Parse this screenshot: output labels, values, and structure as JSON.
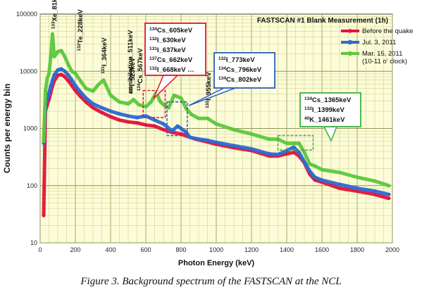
{
  "chart_data": {
    "type": "line",
    "title": "FASTSCAN #1 Blank Measurement (1h)",
    "xlabel": "Photon Energy (keV)",
    "ylabel": "Counts per energy bin",
    "xlim": [
      0,
      2000
    ],
    "ylim": [
      10,
      100000
    ],
    "yscale": "log",
    "grid": true,
    "legend_position": "top-right",
    "x_ticks": [
      "0",
      "200",
      "400",
      "600",
      "800",
      "1000",
      "1200",
      "1400",
      "1600",
      "1800",
      "2000"
    ],
    "y_ticks": [
      "10",
      "100",
      "1000",
      "10000",
      "100000"
    ],
    "series": [
      {
        "name": "Before the quake",
        "color": "#e0143c",
        "marker": "diamond",
        "x": [
          20,
          30,
          40,
          50,
          60,
          70,
          80,
          100,
          120,
          140,
          160,
          180,
          200,
          230,
          260,
          300,
          350,
          400,
          450,
          500,
          550,
          600,
          650,
          700,
          750,
          800,
          850,
          900,
          950,
          1000,
          1100,
          1200,
          1300,
          1350,
          1400,
          1440,
          1470,
          1500,
          1530,
          1560,
          1600,
          1700,
          1800,
          1900,
          1980
        ],
        "y": [
          30,
          2000,
          2600,
          3200,
          4200,
          5500,
          6800,
          8500,
          8800,
          8000,
          6800,
          5600,
          4600,
          3600,
          2900,
          2300,
          1900,
          1600,
          1400,
          1300,
          1250,
          1150,
          1100,
          950,
          850,
          800,
          700,
          630,
          580,
          530,
          460,
          410,
          330,
          330,
          360,
          380,
          330,
          250,
          160,
          125,
          115,
          90,
          80,
          70,
          60
        ]
      },
      {
        "name": "Jul. 3, 2011",
        "color": "#2a6bd4",
        "marker": "circle",
        "x": [
          20,
          30,
          40,
          50,
          60,
          70,
          80,
          100,
          120,
          140,
          160,
          180,
          200,
          230,
          260,
          300,
          350,
          400,
          450,
          500,
          550,
          600,
          650,
          700,
          750,
          780,
          800,
          830,
          850,
          900,
          950,
          1000,
          1100,
          1200,
          1300,
          1350,
          1400,
          1440,
          1470,
          1500,
          1530,
          1560,
          1600,
          1700,
          1800,
          1900,
          1980
        ],
        "y": [
          550,
          2600,
          3300,
          4200,
          5500,
          7000,
          8600,
          10500,
          11000,
          10000,
          8600,
          7000,
          5600,
          4300,
          3400,
          2700,
          2300,
          2000,
          1800,
          1650,
          1550,
          1650,
          1400,
          1200,
          900,
          1100,
          1000,
          850,
          700,
          650,
          620,
          570,
          500,
          440,
          360,
          350,
          410,
          470,
          380,
          260,
          180,
          140,
          125,
          105,
          90,
          80,
          70
        ]
      },
      {
        "name": "Mar. 15, 2011\n(10-11 o' clock)",
        "color": "#5cc83c",
        "marker": "circle",
        "x": [
          20,
          30,
          40,
          50,
          60,
          70,
          80,
          100,
          120,
          140,
          160,
          180,
          200,
          230,
          260,
          300,
          330,
          360,
          400,
          450,
          500,
          530,
          560,
          600,
          630,
          660,
          680,
          700,
          730,
          760,
          800,
          830,
          860,
          900,
          950,
          1000,
          1100,
          1200,
          1300,
          1350,
          1400,
          1440,
          1470,
          1500,
          1530,
          1560,
          1600,
          1700,
          1800,
          1900,
          1980
        ],
        "y": [
          600,
          4500,
          7500,
          9000,
          18000,
          45000,
          18000,
          22000,
          23000,
          18000,
          13000,
          10000,
          9200,
          6700,
          5000,
          4500,
          5800,
          7000,
          3800,
          2900,
          2700,
          3200,
          2600,
          2400,
          2900,
          4300,
          3000,
          2600,
          2300,
          3800,
          3400,
          2200,
          1750,
          1500,
          1500,
          1200,
          950,
          800,
          650,
          650,
          550,
          550,
          550,
          380,
          240,
          220,
          190,
          170,
          140,
          120,
          100
        ]
      }
    ],
    "peak_labels": [
      {
        "text": "133Xe_81keV",
        "x": 81
      },
      {
        "text": "132Te_228keV",
        "x": 228
      },
      {
        "text": "131I_364keV",
        "x": 364
      },
      {
        "text": "annihilation_511keV",
        "x": 511
      },
      {
        "text": "132I_523keV",
        "x": 523
      },
      {
        "text": "134Cs_567keV",
        "x": 567
      },
      {
        "text": "132I_955keV",
        "x": 955
      }
    ],
    "annotation_boxes": [
      {
        "color": "#e0142c",
        "x_range": [
          585,
          710
        ],
        "y_range": [
          1550,
          4600
        ],
        "lines": [
          "134Cs_605keV",
          "132I_630keV",
          "131I_637keV",
          "137Cs_662keV",
          "132I_668keV …"
        ]
      },
      {
        "color": "#2a5fb8",
        "x_range": [
          720,
          835
        ],
        "y_range": [
          750,
          2900
        ],
        "lines": [
          "132I_773keV",
          "134Cs_796keV",
          "134Cs_802keV"
        ]
      },
      {
        "color": "#3cb03c",
        "x_range": [
          1350,
          1550
        ],
        "y_range": [
          420,
          750
        ],
        "lines": [
          "134Cs_1365keV",
          "132I_1399keV",
          "40K_1461keV"
        ]
      }
    ]
  },
  "caption": "Figure 3. Background spectrum of the FASTSCAN at the NCL"
}
